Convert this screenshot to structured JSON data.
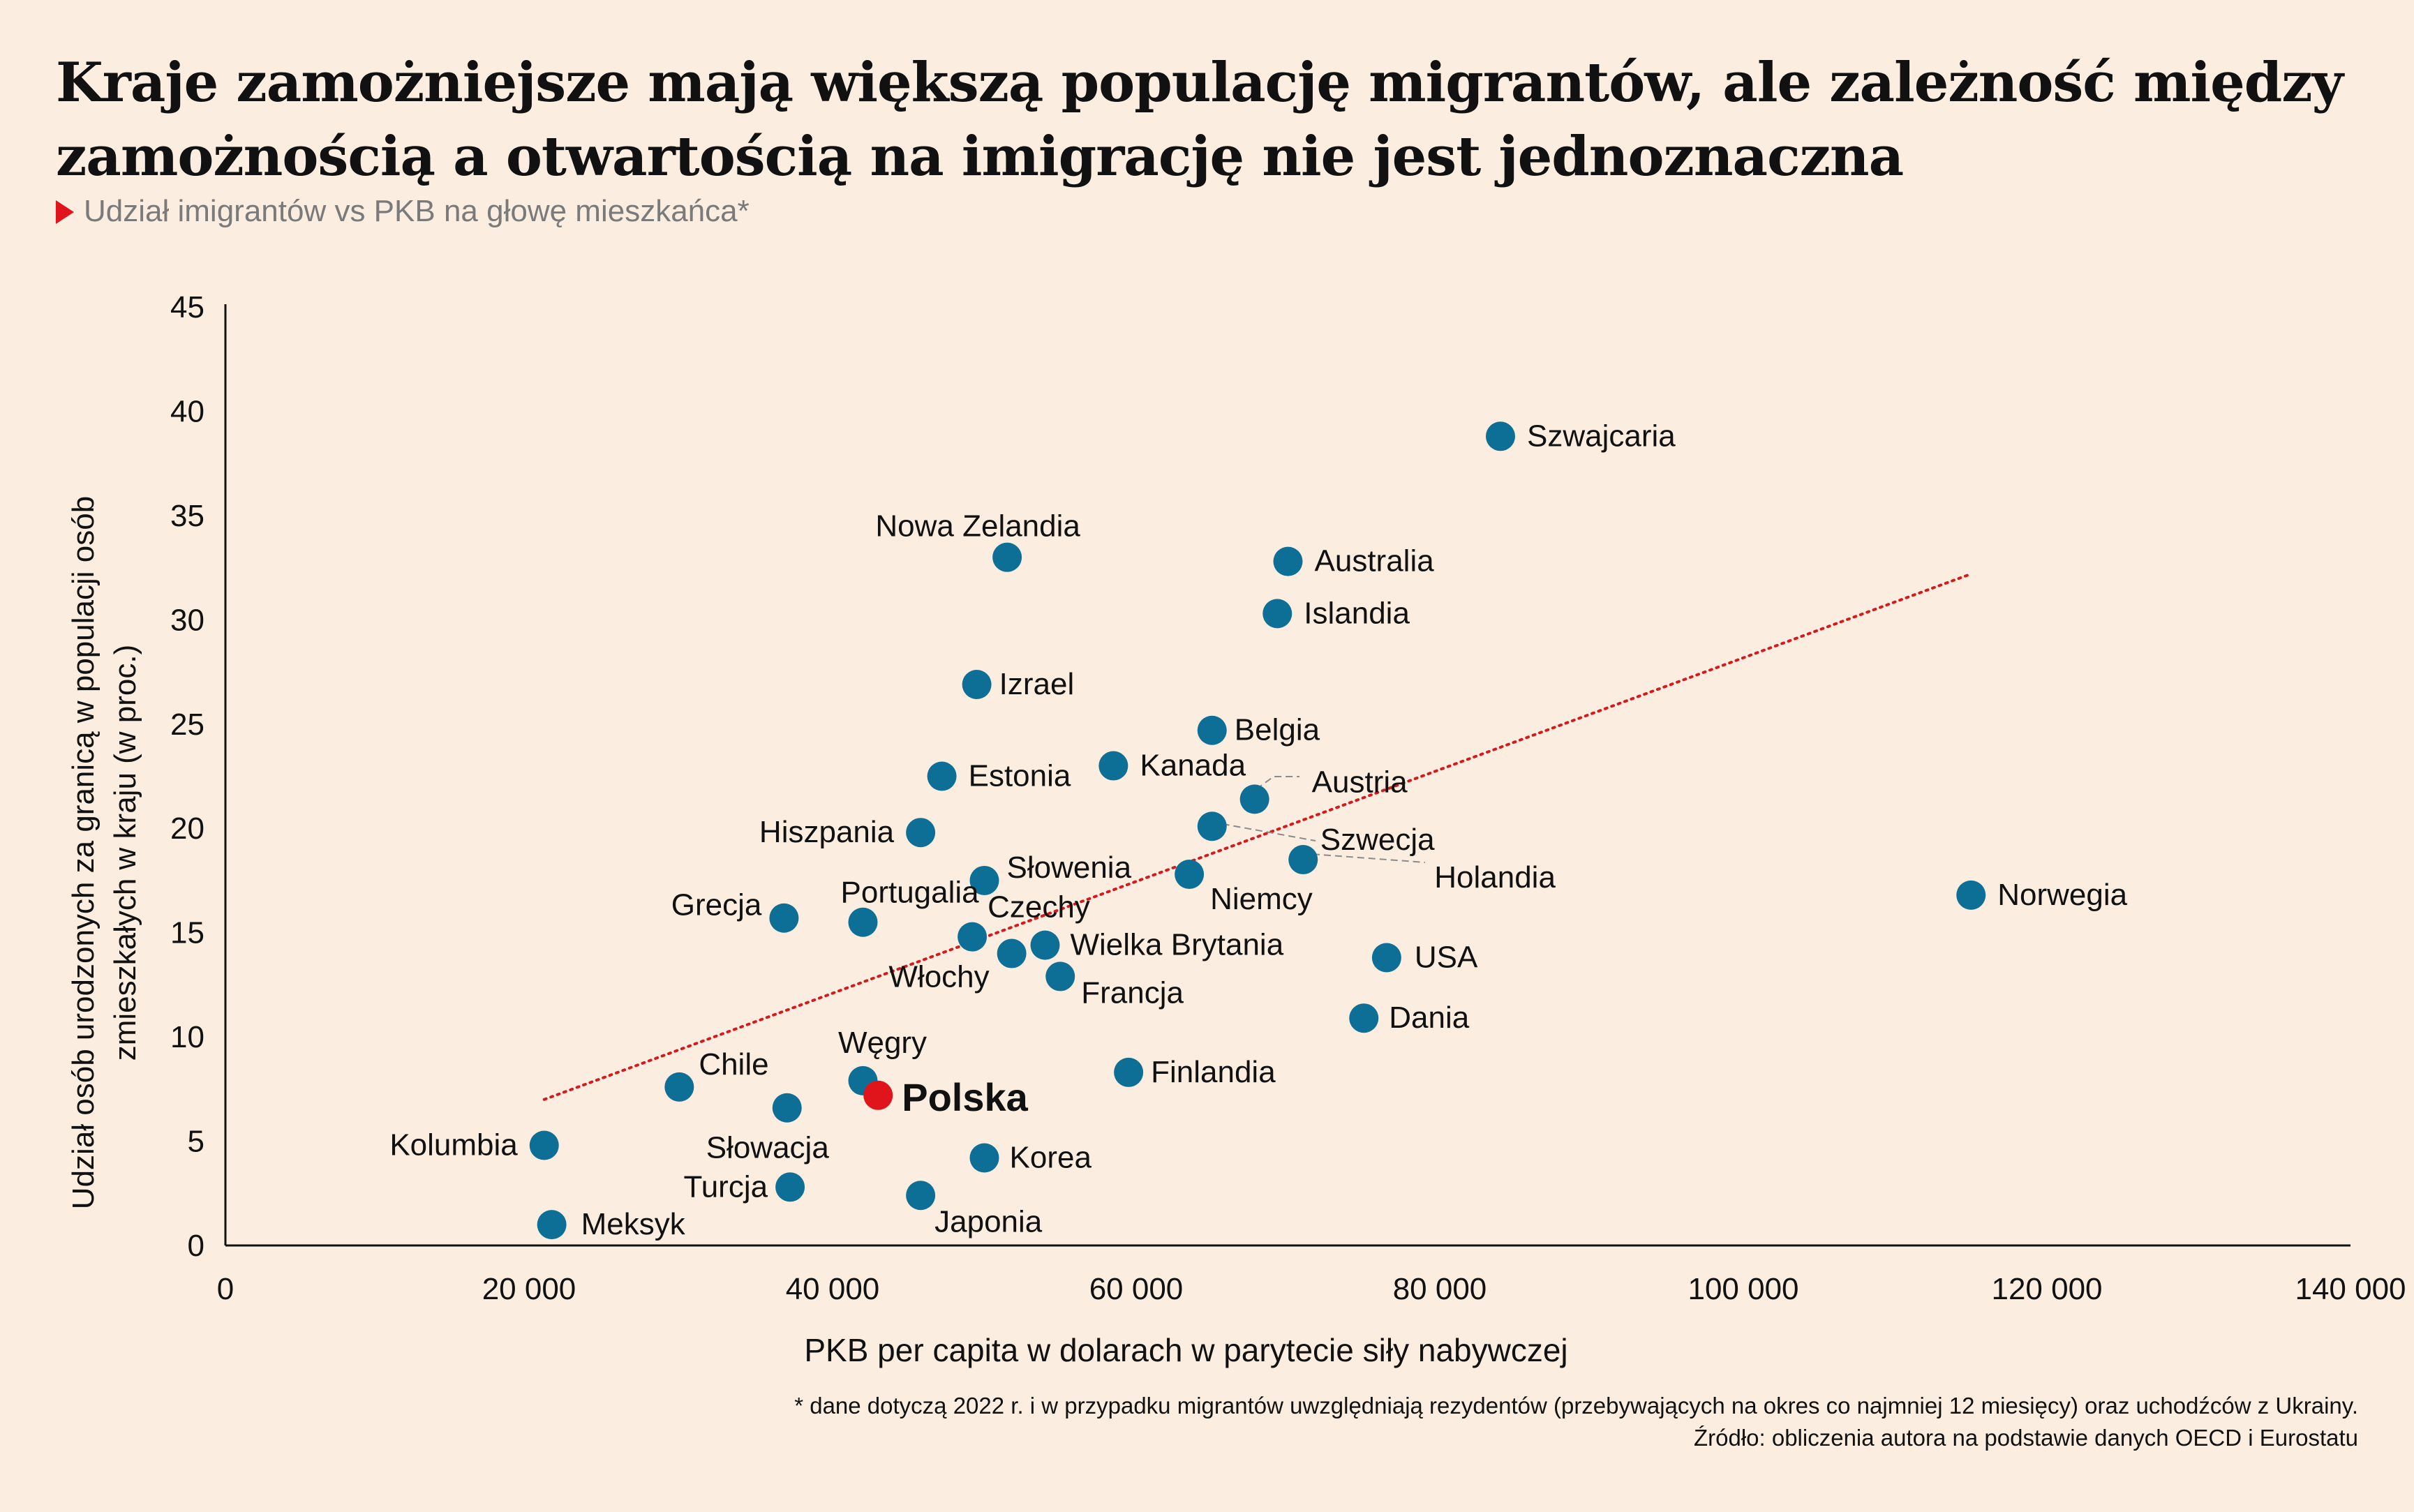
{
  "header": {
    "title": "Kraje zamożniejsze mają większą populację migrantów, ale zależność między zamożnością a otwartością na imigrację nie jest jednoznaczna",
    "subtitle": "Udział imigrantów vs PKB na głowę mieszkańca*",
    "accent_color": "#e0151b"
  },
  "footer": {
    "note": "* dane dotyczą 2022 r. i w przypadku migrantów uwzględniają rezydentów (przebywających na okres co najmniej 12 miesięcy) oraz uchodźców z Ukrainy.",
    "source": "Źródło: obliczenia autora na podstawie danych OECD i Eurostatu"
  },
  "chart_data": {
    "type": "scatter",
    "title": "Kraje zamożniejsze mają większą populację migrantów, ale zależność między zamożnością a otwartością na imigrację nie jest jednoznaczna",
    "subtitle": "Udział imigrantów vs PKB na głowę mieszkańca*",
    "xlabel": "PKB per capita w dolarach w parytecie siły nabywczej",
    "ylabel": "Udział osób urodzonych za granicą w populacji osób zmieszkałych w kraju (w proc.)",
    "xlim": [
      0,
      140000
    ],
    "ylim": [
      0,
      45
    ],
    "xticks": [
      0,
      20000,
      40000,
      60000,
      80000,
      100000,
      120000,
      140000
    ],
    "xtick_labels": [
      "0",
      "20 000",
      "40 000",
      "60 000",
      "80 000",
      "100 000",
      "120 000",
      "140 000"
    ],
    "yticks": [
      0,
      5,
      10,
      15,
      20,
      25,
      30,
      35,
      40,
      45
    ],
    "grid": false,
    "point_color": "#0e6f96",
    "highlight_color": "#e0151b",
    "trendline": {
      "x": [
        21000,
        115000
      ],
      "y": [
        7.0,
        32.2
      ],
      "color": "#d7191c",
      "style": "dotted"
    },
    "points": [
      {
        "label": "Szwajcaria",
        "x": 84000,
        "y": 38.8
      },
      {
        "label": "Nowa Zelandia",
        "x": 51500,
        "y": 33.0
      },
      {
        "label": "Australia",
        "x": 70000,
        "y": 32.8
      },
      {
        "label": "Islandia",
        "x": 69300,
        "y": 30.3
      },
      {
        "label": "Izrael",
        "x": 49500,
        "y": 26.9
      },
      {
        "label": "Belgia",
        "x": 65000,
        "y": 24.7
      },
      {
        "label": "Kanada",
        "x": 58500,
        "y": 23.0
      },
      {
        "label": "Estonia",
        "x": 47200,
        "y": 22.5
      },
      {
        "label": "Austria",
        "x": 67800,
        "y": 21.4
      },
      {
        "label": "Szwecja",
        "x": 65000,
        "y": 20.1
      },
      {
        "label": "Hiszpania",
        "x": 45800,
        "y": 19.8
      },
      {
        "label": "Holandia",
        "x": 71000,
        "y": 18.5
      },
      {
        "label": "Słowenia",
        "x": 50000,
        "y": 17.5
      },
      {
        "label": "Niemcy",
        "x": 63500,
        "y": 17.8
      },
      {
        "label": "Norwegia",
        "x": 115000,
        "y": 16.8
      },
      {
        "label": "Grecja",
        "x": 36800,
        "y": 15.7
      },
      {
        "label": "Portugalia",
        "x": 42000,
        "y": 15.5
      },
      {
        "label": "Czechy",
        "x": 49200,
        "y": 14.8
      },
      {
        "label": "Wielka Brytania",
        "x": 54000,
        "y": 14.4
      },
      {
        "label": "Włochy",
        "x": 51800,
        "y": 14.0
      },
      {
        "label": "USA",
        "x": 76500,
        "y": 13.8
      },
      {
        "label": "Francja",
        "x": 55000,
        "y": 12.9
      },
      {
        "label": "Dania",
        "x": 75000,
        "y": 10.9
      },
      {
        "label": "Finlandia",
        "x": 59500,
        "y": 8.3
      },
      {
        "label": "Węgry",
        "x": 42000,
        "y": 7.9
      },
      {
        "label": "Polska",
        "x": 43000,
        "y": 7.2,
        "highlight": true
      },
      {
        "label": "Chile",
        "x": 29900,
        "y": 7.6
      },
      {
        "label": "Słowacja",
        "x": 37000,
        "y": 6.6
      },
      {
        "label": "Kolumbia",
        "x": 21000,
        "y": 4.8
      },
      {
        "label": "Korea",
        "x": 50000,
        "y": 4.2
      },
      {
        "label": "Turcja",
        "x": 37200,
        "y": 2.8
      },
      {
        "label": "Japonia",
        "x": 45800,
        "y": 2.4
      },
      {
        "label": "Meksyk",
        "x": 21500,
        "y": 1.0
      }
    ]
  }
}
